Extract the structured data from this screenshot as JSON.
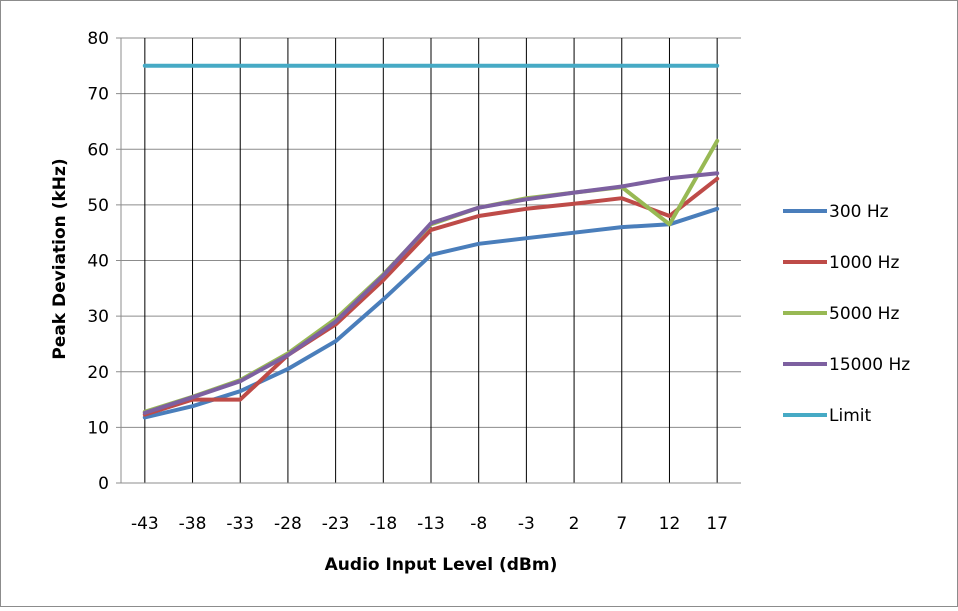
{
  "chart_data": {
    "type": "line",
    "title": "",
    "xlabel": "Audio Input Level (dBm)",
    "ylabel": "Peak Deviation (kHz)",
    "categories": [
      "-43",
      "-38",
      "-33",
      "-28",
      "-23",
      "-18",
      "-13",
      "-8",
      "-3",
      "2",
      "7",
      "12",
      "17"
    ],
    "ylim": [
      0,
      80
    ],
    "yticks": [
      0,
      10,
      20,
      30,
      40,
      50,
      60,
      70,
      80
    ],
    "grid": "vertical lines at categories, horizontal lines at y ticks",
    "legend_position": "right",
    "series": [
      {
        "name": "300 Hz",
        "color": "#4a7ebb",
        "values": [
          11.8,
          13.8,
          16.5,
          20.5,
          25.5,
          33,
          41,
          43,
          44,
          45,
          46,
          46.5,
          49.3
        ]
      },
      {
        "name": "1000 Hz",
        "color": "#be4b48",
        "values": [
          12.3,
          15,
          15,
          23,
          28.5,
          36.5,
          45.5,
          48,
          49.3,
          50.2,
          51.2,
          48,
          54.7
        ]
      },
      {
        "name": "5000 Hz",
        "color": "#98b954",
        "values": [
          12.8,
          15.5,
          18.5,
          23.3,
          29.5,
          37.5,
          46.5,
          49.5,
          51.2,
          52.2,
          53.2,
          46.5,
          61.5
        ]
      },
      {
        "name": "15000 Hz",
        "color": "#7d60a0",
        "values": [
          12.6,
          15.4,
          18.3,
          23,
          29,
          37.3,
          46.7,
          49.5,
          51,
          52.2,
          53.3,
          54.8,
          55.7
        ]
      },
      {
        "name": "Limit",
        "color": "#46aac5",
        "values": [
          75,
          75,
          75,
          75,
          75,
          75,
          75,
          75,
          75,
          75,
          75,
          75,
          75
        ]
      }
    ]
  }
}
